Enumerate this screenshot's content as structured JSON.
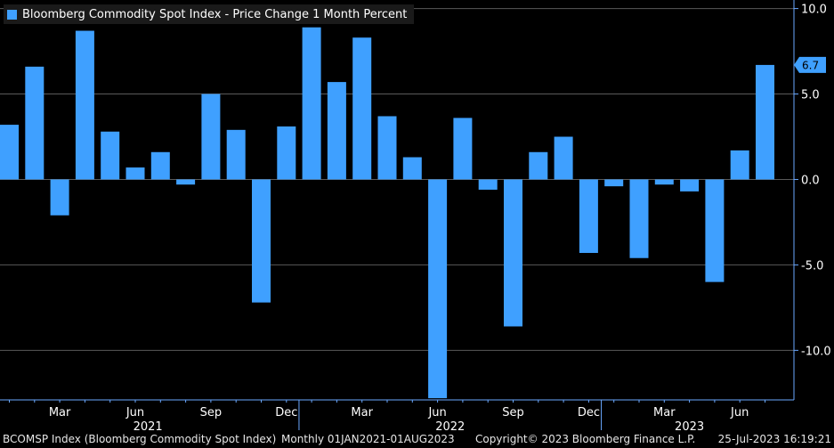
{
  "chart_data": {
    "type": "bar",
    "title": "",
    "series": [
      {
        "name": "Bloomberg Commodity Spot Index - Price Change 1 Month Percent",
        "color": "#3fa0ff",
        "values": [
          3.2,
          6.6,
          -2.1,
          8.7,
          2.8,
          0.7,
          1.6,
          -0.3,
          5.0,
          2.9,
          -7.2,
          3.1,
          8.9,
          5.7,
          8.3,
          3.7,
          1.3,
          -12.8,
          3.6,
          -0.6,
          -8.6,
          1.6,
          2.5,
          -4.3,
          -0.4,
          -4.6,
          -0.3,
          -0.7,
          -6.0,
          1.7,
          6.7
        ]
      }
    ],
    "categories": [
      "Jan 2021",
      "Feb 2021",
      "Mar 2021",
      "Apr 2021",
      "May 2021",
      "Jun 2021",
      "Jul 2021",
      "Aug 2021",
      "Sep 2021",
      "Oct 2021",
      "Nov 2021",
      "Dec 2021",
      "Jan 2022",
      "Feb 2022",
      "Mar 2022",
      "Apr 2022",
      "May 2022",
      "Jun 2022",
      "Jul 2022",
      "Aug 2022",
      "Sep 2022",
      "Oct 2022",
      "Nov 2022",
      "Dec 2022",
      "Jan 2023",
      "Feb 2023",
      "Mar 2023",
      "Apr 2023",
      "May 2023",
      "Jun 2023",
      "Jul 2023"
    ],
    "month_ticks": [
      {
        "index": 2,
        "label": "Mar"
      },
      {
        "index": 5,
        "label": "Jun"
      },
      {
        "index": 8,
        "label": "Sep"
      },
      {
        "index": 11,
        "label": "Dec"
      },
      {
        "index": 14,
        "label": "Mar"
      },
      {
        "index": 17,
        "label": "Jun"
      },
      {
        "index": 20,
        "label": "Sep"
      },
      {
        "index": 23,
        "label": "Dec"
      },
      {
        "index": 26,
        "label": "Mar"
      },
      {
        "index": 29,
        "label": "Jun"
      }
    ],
    "years": [
      {
        "label": "2021",
        "start": 0,
        "end": 11
      },
      {
        "label": "2022",
        "start": 12,
        "end": 23
      },
      {
        "label": "2023",
        "start": 24,
        "end": 30
      }
    ],
    "ylim": [
      -12.9,
      10.5
    ],
    "y_ticks": [
      10.0,
      5.0,
      0.0,
      -5.0,
      -10.0
    ],
    "y_tick_labels": [
      "10.0",
      "5.0",
      "0.0",
      "-5.0",
      "-10.0"
    ],
    "last_value_label": "6.7",
    "grid": true,
    "y_axis_side": "right",
    "legend_position": "top-left"
  },
  "footer": {
    "security": "BCOMSP Index (Bloomberg Commodity Spot Index)",
    "range": "Monthly 01JAN2021-01AUG2023",
    "copyright": "Copyright© 2023 Bloomberg Finance L.P.",
    "timestamp": "25-Jul-2023 16:19:21"
  },
  "colors": {
    "bar": "#3fa0ff",
    "grid": "#5a5a5a",
    "axis": "#6aa8ff",
    "text": "#ffffff",
    "background": "#000000"
  }
}
